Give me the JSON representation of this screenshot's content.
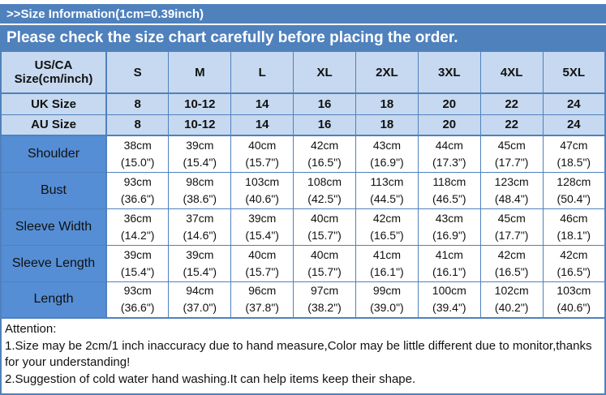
{
  "header": {
    "size_info_bar": ">>Size Information(1cm=0.39inch)",
    "notice_bar": "Please check the size chart carefully before placing the order."
  },
  "table": {
    "corner_label": "US/CA Size(cm/inch)",
    "size_columns": [
      "S",
      "M",
      "L",
      "XL",
      "2XL",
      "3XL",
      "4XL",
      "5XL"
    ],
    "uk_row": {
      "label": "UK Size",
      "values": [
        "8",
        "10-12",
        "14",
        "16",
        "18",
        "20",
        "22",
        "24"
      ]
    },
    "au_row": {
      "label": "AU Size",
      "values": [
        "8",
        "10-12",
        "14",
        "16",
        "18",
        "20",
        "22",
        "24"
      ]
    },
    "measurement_rows": [
      {
        "label": "Shoulder",
        "cells": [
          {
            "cm": "38cm",
            "inch": "(15.0\")"
          },
          {
            "cm": "39cm",
            "inch": "(15.4\")"
          },
          {
            "cm": "40cm",
            "inch": "(15.7\")"
          },
          {
            "cm": "42cm",
            "inch": "(16.5\")"
          },
          {
            "cm": "43cm",
            "inch": "(16.9\")"
          },
          {
            "cm": "44cm",
            "inch": "(17.3\")"
          },
          {
            "cm": "45cm",
            "inch": "(17.7\")"
          },
          {
            "cm": "47cm",
            "inch": "(18.5\")"
          }
        ]
      },
      {
        "label": "Bust",
        "cells": [
          {
            "cm": "93cm",
            "inch": "(36.6\")"
          },
          {
            "cm": "98cm",
            "inch": "(38.6\")"
          },
          {
            "cm": "103cm",
            "inch": "(40.6\")"
          },
          {
            "cm": "108cm",
            "inch": "(42.5\")"
          },
          {
            "cm": "113cm",
            "inch": "(44.5\")"
          },
          {
            "cm": "118cm",
            "inch": "(46.5\")"
          },
          {
            "cm": "123cm",
            "inch": "(48.4\")"
          },
          {
            "cm": "128cm",
            "inch": "(50.4\")"
          }
        ]
      },
      {
        "label": "Sleeve Width",
        "cells": [
          {
            "cm": "36cm",
            "inch": "(14.2\")"
          },
          {
            "cm": "37cm",
            "inch": "(14.6\")"
          },
          {
            "cm": "39cm",
            "inch": "(15.4\")"
          },
          {
            "cm": "40cm",
            "inch": "(15.7\")"
          },
          {
            "cm": "42cm",
            "inch": "(16.5\")"
          },
          {
            "cm": "43cm",
            "inch": "(16.9\")"
          },
          {
            "cm": "45cm",
            "inch": "(17.7\")"
          },
          {
            "cm": "46cm",
            "inch": "(18.1\")"
          }
        ]
      },
      {
        "label": "Sleeve Length",
        "cells": [
          {
            "cm": "39cm",
            "inch": "(15.4\")"
          },
          {
            "cm": "39cm",
            "inch": "(15.4\")"
          },
          {
            "cm": "40cm",
            "inch": "(15.7\")"
          },
          {
            "cm": "40cm",
            "inch": "(15.7\")"
          },
          {
            "cm": "41cm",
            "inch": "(16.1\")"
          },
          {
            "cm": "41cm",
            "inch": "(16.1\")"
          },
          {
            "cm": "42cm",
            "inch": "(16.5\")"
          },
          {
            "cm": "42cm",
            "inch": "(16.5\")"
          }
        ]
      },
      {
        "label": "Length",
        "cells": [
          {
            "cm": "93cm",
            "inch": "(36.6\")"
          },
          {
            "cm": "94cm",
            "inch": "(37.0\")"
          },
          {
            "cm": "96cm",
            "inch": "(37.8\")"
          },
          {
            "cm": "97cm",
            "inch": "(38.2\")"
          },
          {
            "cm": "99cm",
            "inch": "(39.0\")"
          },
          {
            "cm": "100cm",
            "inch": "(39.4\")"
          },
          {
            "cm": "102cm",
            "inch": "(40.2\")"
          },
          {
            "cm": "103cm",
            "inch": "(40.6\")"
          }
        ]
      }
    ]
  },
  "attention": {
    "title": "Attention:",
    "lines": [
      "1.Size may be 2cm/1 inch inaccuracy due to hand measure,Color may be little different due to monitor,thanks for your understanding!",
      "2.Suggestion of cold water hand washing.It can help items keep their shape."
    ]
  },
  "colors": {
    "banner_blue": "#4f81bd",
    "light_blue_cell": "#c6d9f0",
    "label_blue_cell": "#558ed5",
    "grid_border": "#4f81bd",
    "banner_text": "#ffffff",
    "body_text": "#111111"
  }
}
